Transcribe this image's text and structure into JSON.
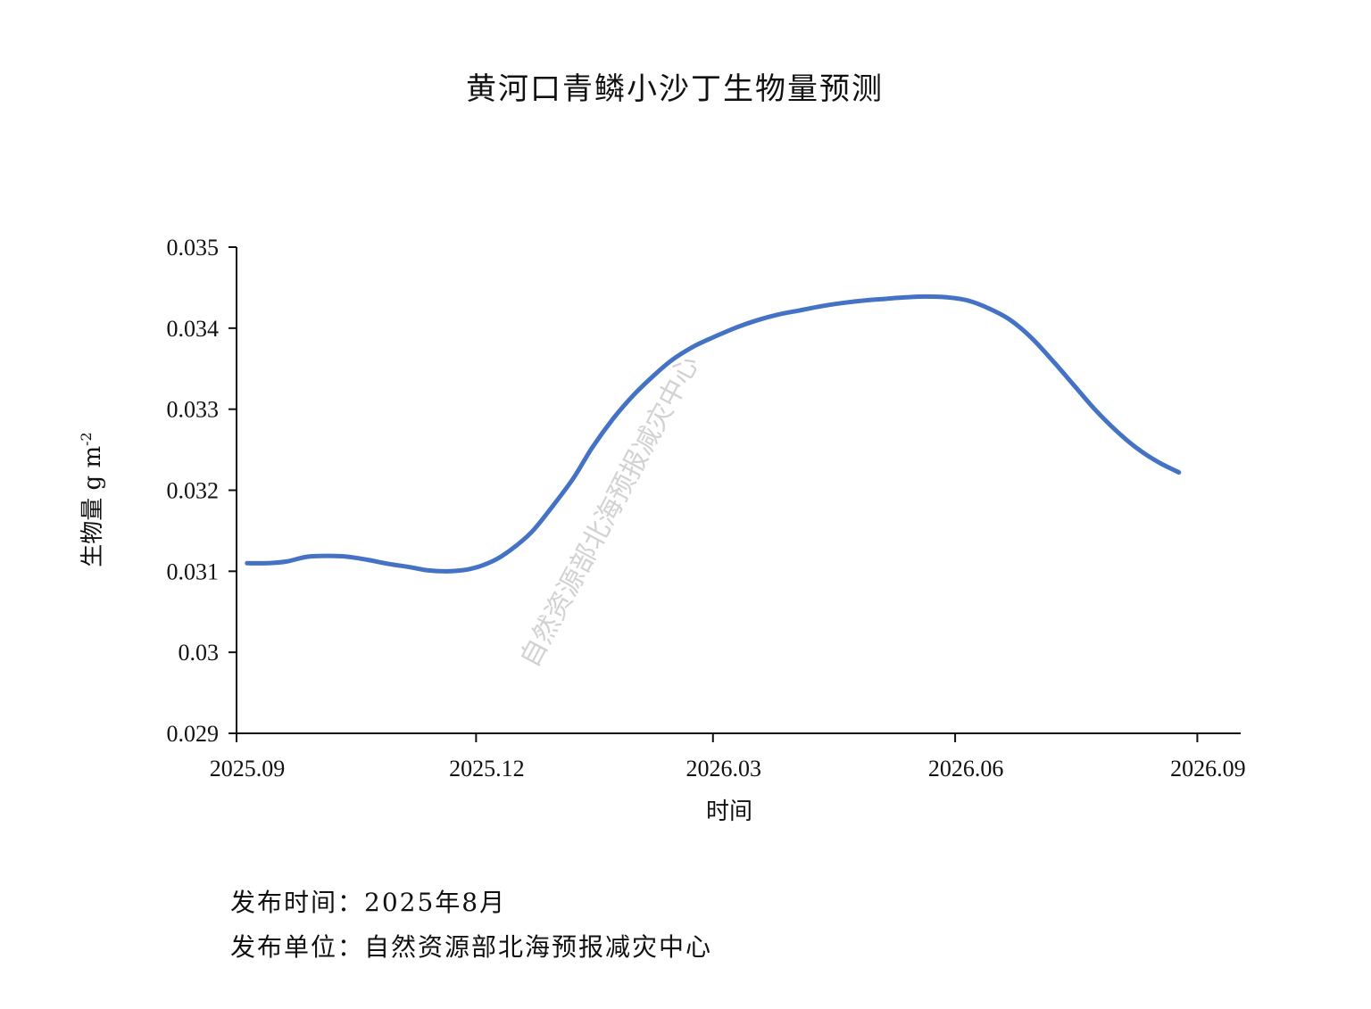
{
  "chart_data": {
    "type": "line",
    "title": "黄河口青鳞小沙丁生物量预测",
    "xlabel": "时间",
    "ylabel": "生物量 g m",
    "ylabel_sup": "-2",
    "ylim": [
      0.029,
      0.035
    ],
    "yticks": [
      "0.029",
      "0.03",
      "0.031",
      "0.032",
      "0.033",
      "0.034",
      "0.035"
    ],
    "xticks": [
      {
        "date": "2025-09-01",
        "label": "2025.09"
      },
      {
        "date": "2025-12-01",
        "label": "2025.12"
      },
      {
        "date": "2026-03-01",
        "label": "2026.03"
      },
      {
        "date": "2026-06-01",
        "label": "2026.06"
      },
      {
        "date": "2026-09-01",
        "label": "2026.09"
      }
    ],
    "xlim": [
      "2025-09-01",
      "2026-09-09"
    ],
    "line_color": "#4472C4",
    "series": [
      {
        "x": [
          "2025-09-05",
          "2025-09-13",
          "2025-09-20",
          "2025-09-28",
          "2025-10-06",
          "2025-10-13",
          "2025-10-21",
          "2025-10-29",
          "2025-11-06",
          "2025-11-13",
          "2025-11-21",
          "2025-11-29",
          "2025-12-07",
          "2025-12-14",
          "2025-12-22",
          "2025-12-30",
          "2026-01-07",
          "2026-01-14",
          "2026-01-22",
          "2026-01-30",
          "2026-02-07",
          "2026-02-14",
          "2026-02-22",
          "2026-03-02",
          "2026-03-10",
          "2026-03-18",
          "2026-03-26",
          "2026-04-03",
          "2026-04-11",
          "2026-04-19",
          "2026-04-27",
          "2026-05-05",
          "2026-05-13",
          "2026-05-21",
          "2026-05-29",
          "2026-06-06",
          "2026-06-14",
          "2026-06-22",
          "2026-06-30",
          "2026-07-08",
          "2026-07-16",
          "2026-07-24",
          "2026-08-01",
          "2026-08-09",
          "2026-08-17",
          "2026-08-25"
        ],
        "values": [
          0.0311,
          0.0311,
          0.03112,
          0.03118,
          0.03119,
          0.03118,
          0.03114,
          0.03109,
          0.03105,
          0.03101,
          0.031,
          0.03103,
          0.03112,
          0.03126,
          0.03148,
          0.0318,
          0.03215,
          0.03252,
          0.03288,
          0.03318,
          0.03343,
          0.03362,
          0.03378,
          0.0339,
          0.03401,
          0.0341,
          0.03417,
          0.03422,
          0.03427,
          0.03431,
          0.03434,
          0.03436,
          0.03438,
          0.03439,
          0.03438,
          0.03434,
          0.03424,
          0.0341,
          0.03388,
          0.0336,
          0.0333,
          0.033,
          0.03274,
          0.03252,
          0.03235,
          0.03222
        ]
      }
    ],
    "watermark": "自然资源部北海预报减灾中心"
  },
  "footer": {
    "publish_time": "发布时间：2025年8月",
    "publisher": "发布单位：自然资源部北海预报减灾中心"
  }
}
